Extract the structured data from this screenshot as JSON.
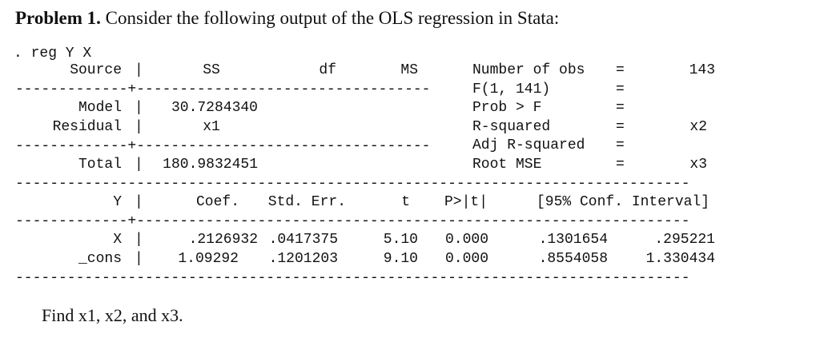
{
  "problem": {
    "label": "Problem 1.",
    "text": "Consider the following output of the OLS regression in Stata:"
  },
  "command": ". reg Y X",
  "anova": {
    "headers": {
      "source": "Source",
      "ss": "SS",
      "df": "df",
      "ms": "MS"
    },
    "rows": [
      {
        "source": "Model",
        "ss": "30.7284340"
      },
      {
        "source": "Residual",
        "ss": "x1"
      },
      {
        "source": "Total",
        "ss": "180.9832451"
      }
    ]
  },
  "stats": [
    {
      "label": "Number of obs",
      "eq": "=",
      "value": "143"
    },
    {
      "label": "F(1, 141)",
      "eq": "=",
      "value": ""
    },
    {
      "label": "Prob > F",
      "eq": "=",
      "value": ""
    },
    {
      "label": "R-squared",
      "eq": "=",
      "value": "x2"
    },
    {
      "label": "Adj R-squared",
      "eq": "=",
      "value": ""
    },
    {
      "label": "Root MSE",
      "eq": "=",
      "value": "x3"
    }
  ],
  "coef_table": {
    "headers": {
      "var": "Y",
      "coef": "Coef.",
      "se": "Std. Err.",
      "t": "t",
      "p": "P>|t|",
      "ci": "[95% Conf. Interval]"
    },
    "rows": [
      {
        "var": "X",
        "coef": ".2126932",
        "se": ".0417375",
        "t": "5.10",
        "p": "0.000",
        "ci_low": ".1301654",
        "ci_high": ".295221"
      },
      {
        "var": "_cons",
        "coef": "1.09292",
        "se": ".1201203",
        "t": "9.10",
        "p": "0.000",
        "ci_low": ".8554058",
        "ci_high": "1.330434"
      }
    ]
  },
  "separators": {
    "bar": "|",
    "anova_rule": "-------------+----------------------------------",
    "coef_rule": "-------------+----------------------------------------------------------------",
    "full_rule": "------------------------------------------------------------------------------"
  },
  "question": "Find x1, x2, and x3."
}
